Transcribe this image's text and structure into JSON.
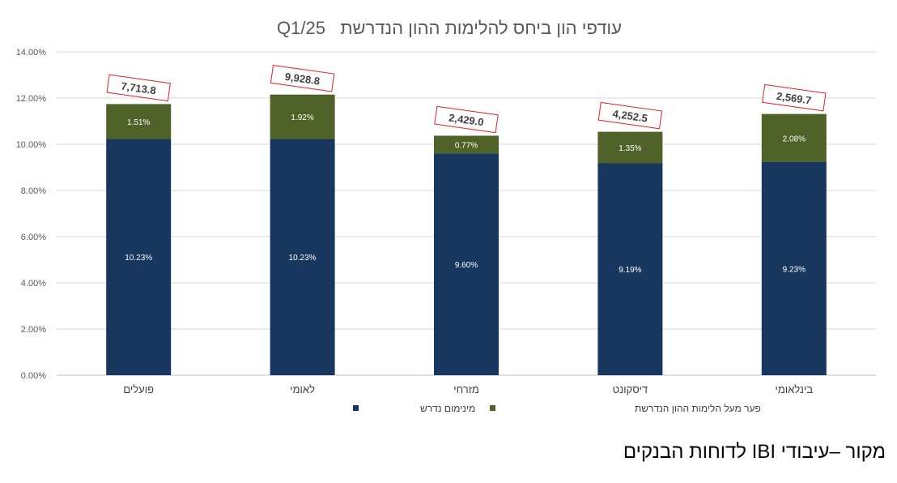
{
  "chart_data": {
    "type": "bar",
    "stacked": true,
    "title": "עודפי הון ביחס להלימות ההון הנדרשת   Q1/25",
    "categories": [
      "פועלים",
      "לאומי",
      "מזרחי",
      "דיסקונט",
      "בינלאומי"
    ],
    "series": [
      {
        "name": "מינימום נדרש",
        "color": "#17375e",
        "values": [
          10.23,
          10.23,
          9.6,
          9.19,
          9.23
        ],
        "labels": [
          "10.23%",
          "10.23%",
          "9.60%",
          "9.19%",
          "9.23%"
        ]
      },
      {
        "name": "פער מעל הלימות ההון הנדרשת",
        "color": "#4f6228",
        "values": [
          1.51,
          1.92,
          0.77,
          1.35,
          2.08
        ],
        "labels": [
          "1.51%",
          "1.92%",
          "0.77%",
          "1.35%",
          "2.08%"
        ]
      }
    ],
    "callouts": [
      "7,713.8",
      "9,928.8",
      "2,429.0",
      "4,252.5",
      "2,569.7"
    ],
    "callout_color": "#e41e26",
    "ylim": [
      0,
      14
    ],
    "yticks": [
      "0.00%",
      "2.00%",
      "4.00%",
      "6.00%",
      "8.00%",
      "10.00%",
      "12.00%",
      "14.00%"
    ],
    "grid": true,
    "legend_position": "bottom"
  },
  "source_note": "מקור –עיבודי IBI לדוחות הבנקים"
}
